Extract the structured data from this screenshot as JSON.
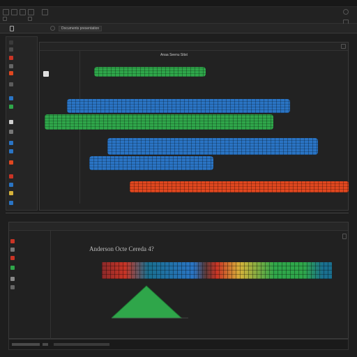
{
  "tabs": {
    "document_tab": "Documents presentation"
  },
  "upper_chart": {
    "title": "Anaa Seenu Sttst"
  },
  "lower_chart": {
    "title": "Anderson Octe Cereda 4?"
  },
  "colors": {
    "green": "#2fa64a",
    "blue": "#2a74c4",
    "orange": "#e0471f",
    "red": "#c93425",
    "teal": "#1a6f8f",
    "yellow": "#d6b23a"
  },
  "icons": [
    "menu-icon",
    "toolbar-icon",
    "close-icon",
    "chevron-down-icon",
    "sidebar-item-icon",
    "resize-handle-icon"
  ]
}
